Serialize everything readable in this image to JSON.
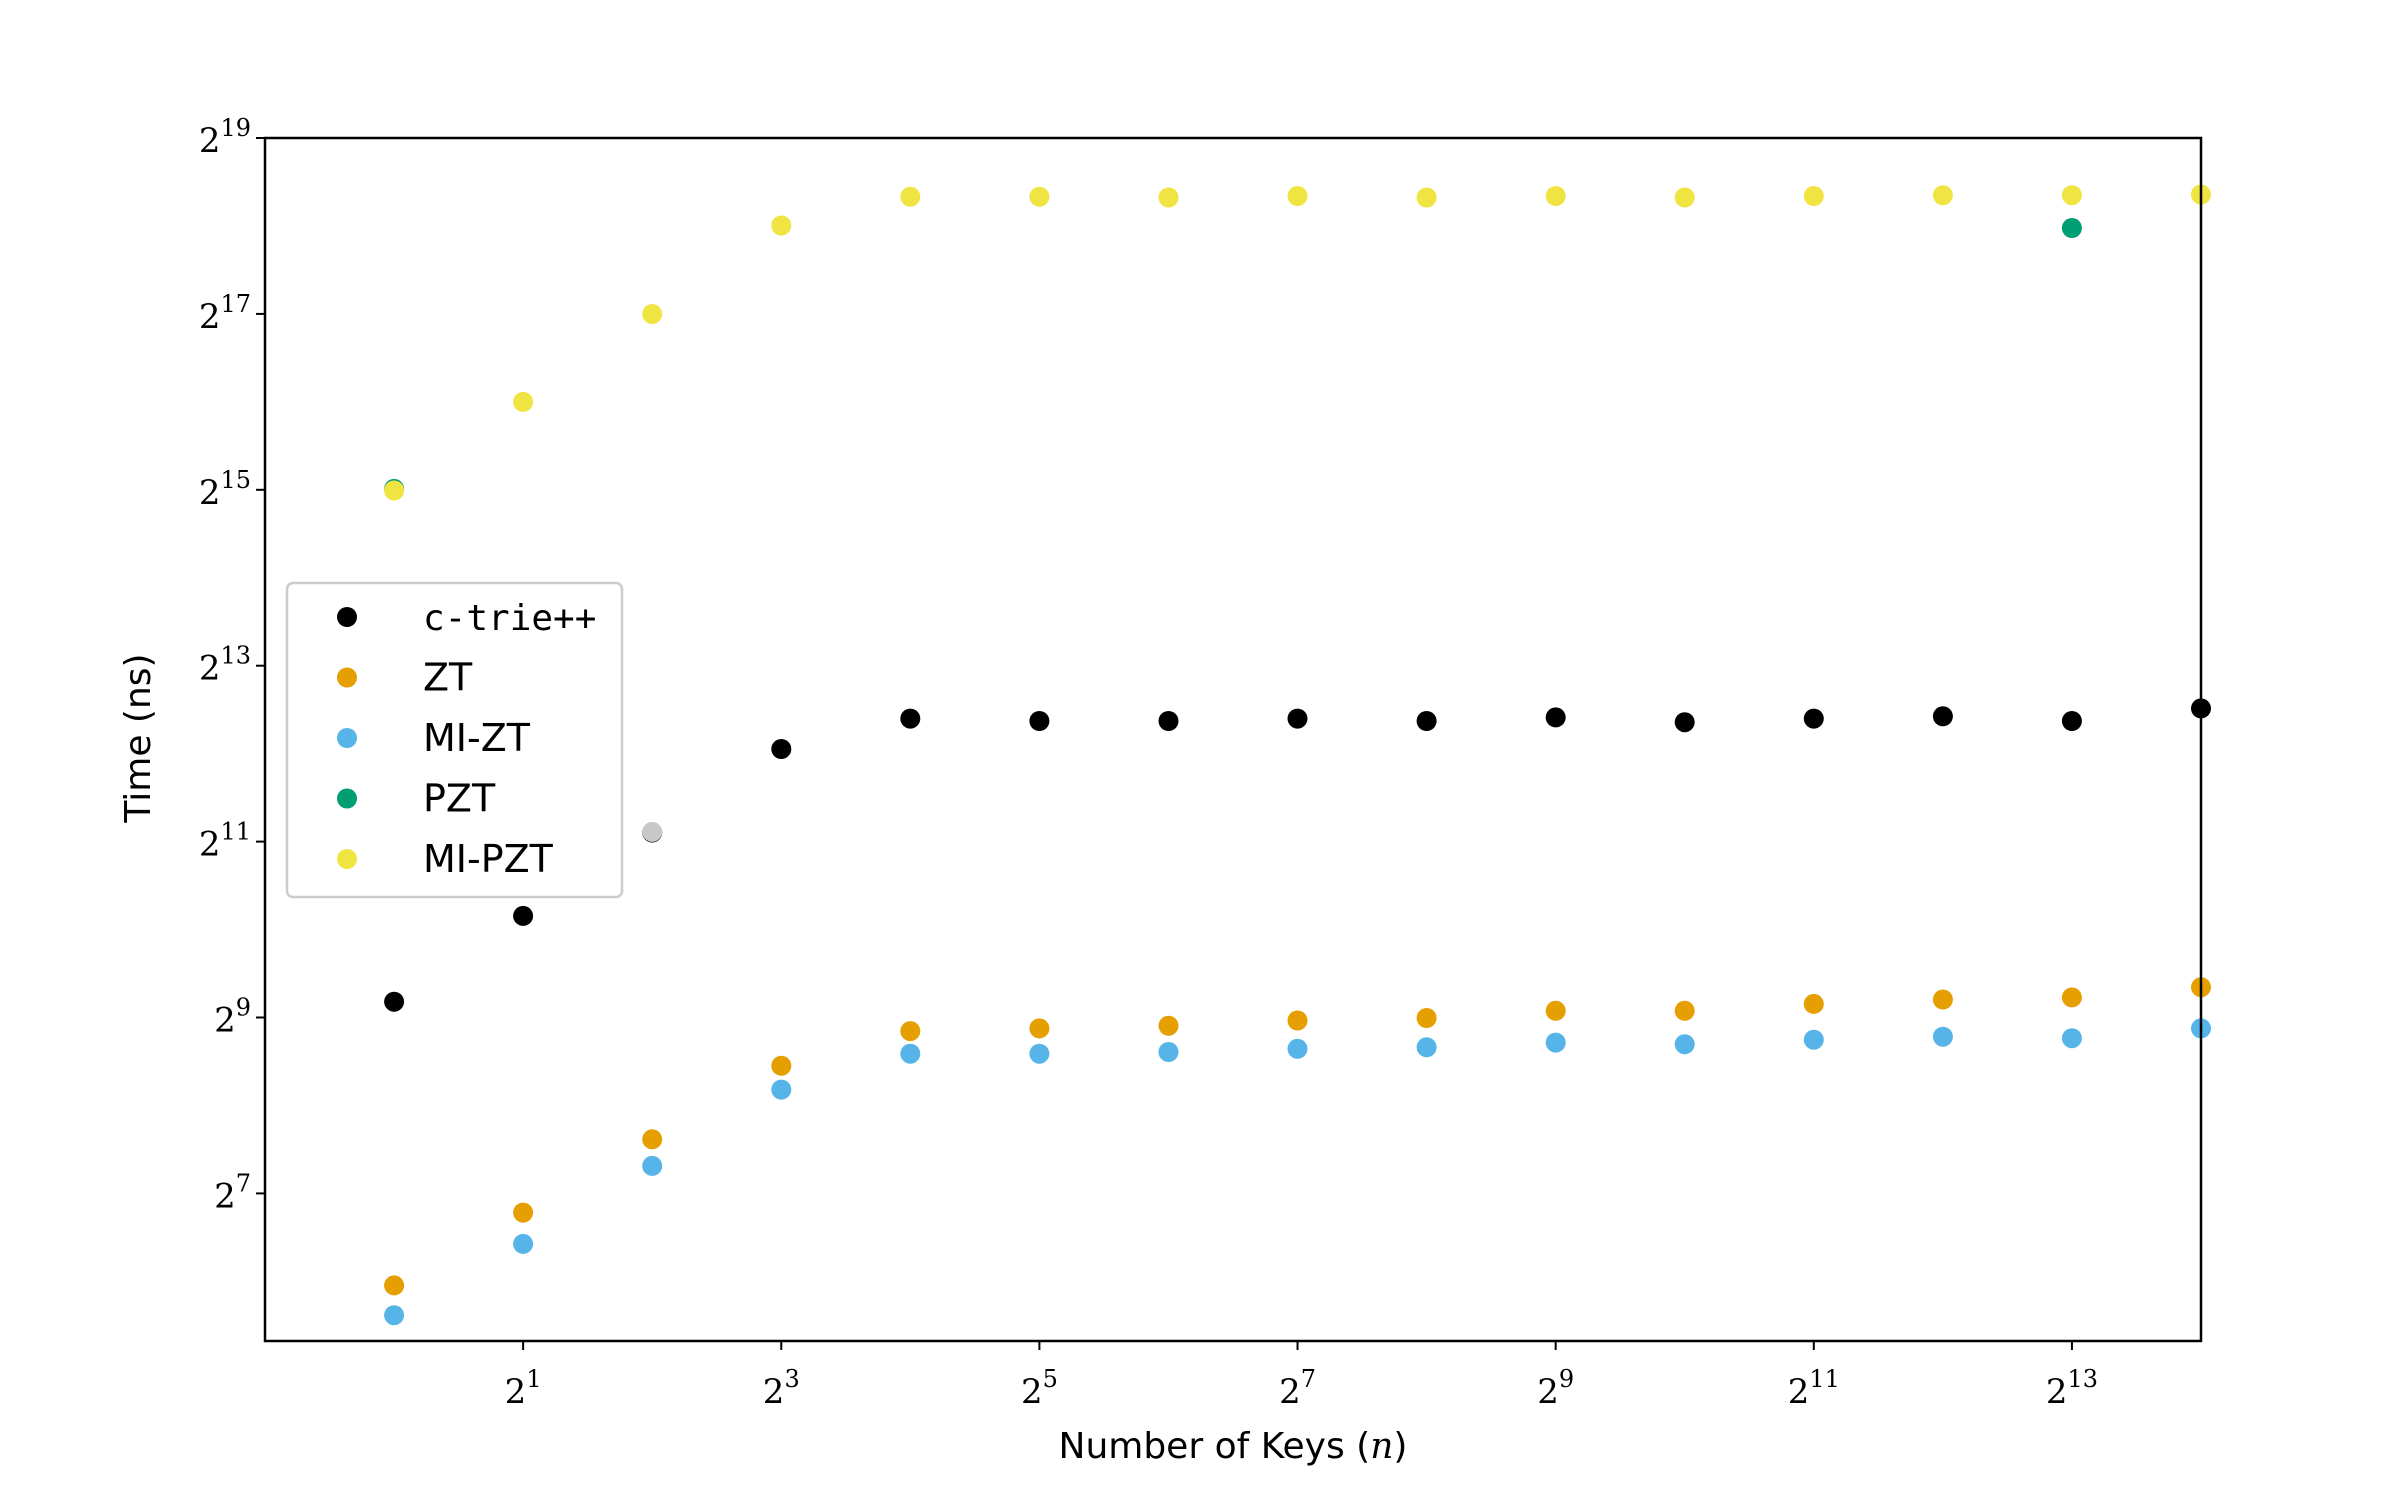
{
  "chart_data": {
    "type": "scatter",
    "xlabel": "Number of Keys (",
    "xlabel_var": "n",
    "xlabel_end": ")",
    "ylabel": "Time (ns)",
    "x_scale": "log2",
    "y_scale": "log2",
    "xlim": [
      0.5,
      16384
    ],
    "ylim": [
      40,
      524288
    ],
    "x_ticks": [
      {
        "base": "2",
        "exp": "1",
        "value": 2
      },
      {
        "base": "2",
        "exp": "3",
        "value": 8
      },
      {
        "base": "2",
        "exp": "5",
        "value": 32
      },
      {
        "base": "2",
        "exp": "7",
        "value": 128
      },
      {
        "base": "2",
        "exp": "9",
        "value": 512
      },
      {
        "base": "2",
        "exp": "11",
        "value": 2048
      },
      {
        "base": "2",
        "exp": "13",
        "value": 8192
      }
    ],
    "y_ticks": [
      {
        "base": "2",
        "exp": "7",
        "value": 128
      },
      {
        "base": "2",
        "exp": "9",
        "value": 512
      },
      {
        "base": "2",
        "exp": "11",
        "value": 2048
      },
      {
        "base": "2",
        "exp": "13",
        "value": 8192
      },
      {
        "base": "2",
        "exp": "15",
        "value": 32768
      },
      {
        "base": "2",
        "exp": "17",
        "value": 131072
      },
      {
        "base": "2",
        "exp": "19",
        "value": 524288
      }
    ],
    "x": [
      1,
      2,
      4,
      8,
      16,
      32,
      64,
      128,
      256,
      512,
      1024,
      2048,
      4096,
      8192,
      16384
    ],
    "grid": false,
    "legend_position": "center-left",
    "series": [
      {
        "name": "c-trie++",
        "color": "#000000",
        "mono": true,
        "values": [
          580,
          1140,
          2200,
          4250,
          5400,
          5300,
          5300,
          5400,
          5300,
          5450,
          5250,
          5400,
          5500,
          5300,
          5850
        ]
      },
      {
        "name": "ZT",
        "color": "#E69F00",
        "mono": false,
        "values": [
          62,
          110,
          196,
          350,
          460,
          470,
          480,
          500,
          510,
          540,
          540,
          570,
          590,
          600,
          650
        ]
      },
      {
        "name": "MI-ZT",
        "color": "#56B4E9",
        "mono": false,
        "values": [
          49,
          86,
          159,
          290,
          385,
          385,
          390,
          400,
          405,
          420,
          415,
          430,
          440,
          435,
          470
        ]
      },
      {
        "name": "PZT",
        "color": "#009E73",
        "mono": false,
        "values": [
          33000,
          null,
          null,
          null,
          null,
          null,
          null,
          null,
          null,
          null,
          null,
          null,
          null,
          258000,
          null
        ]
      },
      {
        "name": "MI-PZT",
        "color": "#F0E442",
        "mono": false,
        "values": [
          32600,
          65500,
          131000,
          263000,
          330000,
          330000,
          328000,
          332000,
          328000,
          332000,
          328000,
          332000,
          334000,
          334000,
          336000
        ]
      }
    ],
    "extra_points": [
      {
        "x": 4,
        "y": 2210,
        "color": "#c8c8c8"
      }
    ]
  }
}
